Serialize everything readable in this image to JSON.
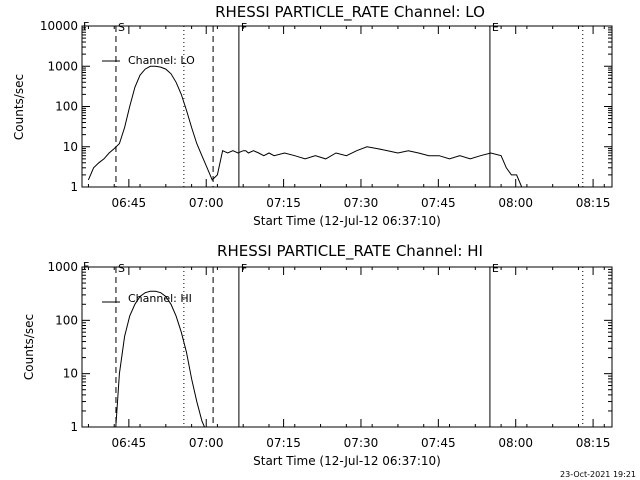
{
  "footer_timestamp": "23-Oct-2021 19:21",
  "chart_data": [
    {
      "type": "line",
      "title": "RHESSI PARTICLE_RATE Channel: LO",
      "xlabel": "Start Time (12-Jul-12 06:37:10)",
      "ylabel": "Counts/sec",
      "yscale": "log",
      "ylim": [
        1,
        10000
      ],
      "xlim_minutes": [
        -1.25,
        101.5
      ],
      "x_ticks": [
        "06:45",
        "07:00",
        "07:15",
        "07:30",
        "07:45",
        "08:00",
        "08:15"
      ],
      "y_ticks": [
        "1",
        "10",
        "100",
        "1000",
        "10000"
      ],
      "legend": "Channel: LO",
      "legend_position": "top-left",
      "markers": [
        {
          "label": "S",
          "time": "06:42:30",
          "style": "dashed"
        },
        {
          "label": "",
          "time": "06:55:40",
          "style": "dotted"
        },
        {
          "label": "",
          "time": "07:01:20",
          "style": "dashed"
        },
        {
          "label": "F",
          "time": "07:06:20",
          "style": "solid"
        },
        {
          "label": "E",
          "time": "07:55:00",
          "style": "solid"
        },
        {
          "label": "",
          "time": "08:13:00",
          "style": "dotted"
        }
      ],
      "corner_label": "F",
      "series": [
        {
          "name": "Channel: LO",
          "x": [
            0,
            1,
            2,
            3,
            4,
            5,
            6,
            7,
            8,
            9,
            10,
            11,
            12,
            13,
            14,
            15,
            16,
            17,
            18,
            19,
            20,
            21,
            22,
            23,
            24,
            25,
            26,
            27,
            28,
            29,
            30,
            30.5,
            31,
            32,
            33,
            34,
            35,
            36,
            38,
            40,
            42,
            44,
            46,
            48,
            50,
            52,
            54,
            56,
            58,
            60,
            62,
            64,
            66,
            68,
            70,
            72,
            74,
            76,
            78,
            80,
            81,
            82,
            83,
            84,
            85,
            86,
            87,
            88,
            89,
            90,
            91,
            92,
            93,
            94,
            95,
            96,
            97,
            98
          ],
          "y": [
            1.5,
            3,
            4,
            5,
            7,
            9,
            12,
            30,
            100,
            300,
            600,
            850,
            1000,
            1000,
            950,
            850,
            650,
            400,
            200,
            80,
            30,
            12,
            6,
            3,
            1.5,
            2,
            8,
            7,
            8,
            7,
            8,
            8,
            7,
            8,
            7,
            6,
            7,
            6,
            7,
            6,
            5,
            6,
            5,
            7,
            6,
            8,
            10,
            9,
            8,
            7,
            8,
            7,
            6,
            6,
            5,
            6,
            5,
            6,
            7,
            6,
            3,
            2,
            2,
            1,
            1,
            1,
            1,
            1,
            1,
            1,
            1,
            1,
            1,
            1,
            1,
            1,
            1,
            1
          ]
        }
      ]
    },
    {
      "type": "line",
      "title": "RHESSI PARTICLE_RATE Channel: HI",
      "xlabel": "Start Time (12-Jul-12 06:37:10)",
      "ylabel": "Counts/sec",
      "yscale": "log",
      "ylim": [
        1,
        1000
      ],
      "xlim_minutes": [
        -1.25,
        101.5
      ],
      "x_ticks": [
        "06:45",
        "07:00",
        "07:15",
        "07:30",
        "07:45",
        "08:00",
        "08:15"
      ],
      "y_ticks": [
        "1",
        "10",
        "100",
        "1000"
      ],
      "legend": "Channel: HI",
      "legend_position": "top-left",
      "markers": [
        {
          "label": "S",
          "time": "06:42:30",
          "style": "dashed"
        },
        {
          "label": "",
          "time": "06:55:40",
          "style": "dotted"
        },
        {
          "label": "",
          "time": "07:01:20",
          "style": "dashed"
        },
        {
          "label": "F",
          "time": "07:06:20",
          "style": "solid"
        },
        {
          "label": "E",
          "time": "07:55:00",
          "style": "solid"
        },
        {
          "label": "",
          "time": "08:13:00",
          "style": "dotted"
        }
      ],
      "corner_label": "F",
      "series": [
        {
          "name": "Channel: HI",
          "x": [
            5.3,
            6,
            7,
            8,
            9,
            10,
            11,
            12,
            13,
            14,
            15,
            16,
            17,
            18,
            19,
            20,
            21,
            22,
            22.5
          ],
          "y": [
            1,
            10,
            50,
            120,
            200,
            280,
            330,
            350,
            350,
            330,
            280,
            200,
            120,
            60,
            25,
            8,
            3,
            1.3,
            1
          ]
        }
      ]
    }
  ]
}
